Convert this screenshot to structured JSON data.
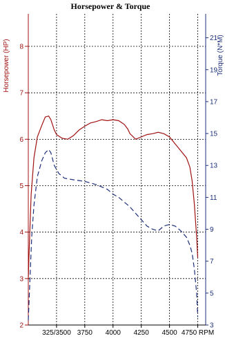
{
  "chart_data": {
    "type": "line",
    "title": "Horsepower & Torque",
    "xlabel": "RPM",
    "ylabel_left": "Horsepower (HP)",
    "ylabel_right": "Torque (N*M)",
    "x_tick_labels": [
      "325/3500",
      "3750",
      "4000",
      "4250",
      "4500",
      "4750 RPM"
    ],
    "x_tick_values": [
      3500,
      3750,
      4000,
      4250,
      4500,
      4750
    ],
    "xlim": [
      3250,
      4820
    ],
    "ylim_left": [
      2,
      8.7
    ],
    "ylim_right": [
      3,
      22.5
    ],
    "y_ticks_left": [
      2,
      3,
      4,
      5,
      6,
      7,
      8
    ],
    "y_ticks_right": [
      3,
      5,
      7,
      9,
      11,
      13,
      15,
      17,
      19,
      21
    ],
    "grid": true,
    "series": [
      {
        "name": "Horsepower (HP)",
        "axis": "left",
        "color": "#a01010",
        "dash": "solid",
        "x": [
          3250,
          3255,
          3275,
          3300,
          3330,
          3370,
          3400,
          3430,
          3450,
          3480,
          3500,
          3550,
          3600,
          3650,
          3700,
          3750,
          3800,
          3850,
          3900,
          3950,
          4000,
          4050,
          4100,
          4130,
          4150,
          4200,
          4250,
          4300,
          4350,
          4400,
          4450,
          4500,
          4550,
          4600,
          4650,
          4680,
          4700,
          4720,
          4740,
          4750
        ],
        "values": [
          2.98,
          3.4,
          4.8,
          5.6,
          6.05,
          6.3,
          6.48,
          6.5,
          6.42,
          6.2,
          6.1,
          6.02,
          6.0,
          6.08,
          6.2,
          6.28,
          6.35,
          6.38,
          6.42,
          6.4,
          6.42,
          6.4,
          6.32,
          6.22,
          6.12,
          6.0,
          6.05,
          6.1,
          6.12,
          6.15,
          6.12,
          6.05,
          5.9,
          5.75,
          5.6,
          5.4,
          5.1,
          4.6,
          3.9,
          3.45
        ]
      },
      {
        "name": "Torque (N*M)",
        "axis": "right",
        "color": "#1d2f7a",
        "dash": "dashed",
        "x": [
          3250,
          3260,
          3280,
          3300,
          3330,
          3370,
          3400,
          3430,
          3450,
          3480,
          3520,
          3570,
          3650,
          3750,
          3850,
          3950,
          4000,
          4050,
          4100,
          4150,
          4200,
          4250,
          4300,
          4350,
          4400,
          4450,
          4500,
          4550,
          4600,
          4650,
          4680,
          4700,
          4720,
          4740,
          4750
        ],
        "values": [
          3.3,
          5.0,
          8.5,
          10.5,
          12.3,
          13.3,
          13.8,
          14.0,
          13.8,
          13.0,
          12.5,
          12.2,
          12.1,
          12.0,
          11.8,
          11.5,
          11.2,
          11.0,
          10.7,
          10.4,
          10.0,
          9.6,
          9.2,
          9.0,
          8.9,
          9.2,
          9.3,
          9.2,
          8.9,
          8.5,
          8.0,
          7.5,
          6.5,
          5.0,
          3.5
        ]
      }
    ]
  }
}
